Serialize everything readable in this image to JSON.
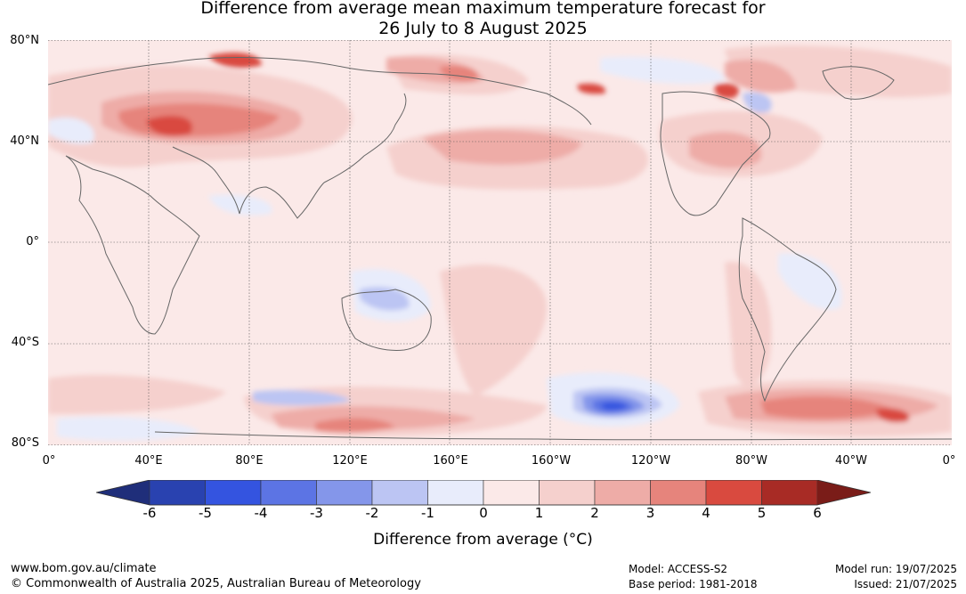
{
  "title_line1": "Difference from average mean maximum temperature forecast for",
  "title_line2": "26 July to 8 August 2025",
  "lat_labels": [
    "80°N",
    "40°N",
    "0°",
    "40°S",
    "80°S"
  ],
  "lon_labels": [
    "0°",
    "40°E",
    "80°E",
    "120°E",
    "160°E",
    "160°W",
    "120°W",
    "80°W",
    "40°W",
    "0°"
  ],
  "colorbar": {
    "ticks": [
      "-6",
      "-5",
      "-4",
      "-3",
      "-2",
      "-1",
      "0",
      "1",
      "2",
      "3",
      "4",
      "5",
      "6"
    ],
    "colors": [
      "#1f2e7a",
      "#2942b0",
      "#3454e0",
      "#5c74e4",
      "#8496ea",
      "#bcc5f3",
      "#e8ecfb",
      "#fbe9e8",
      "#f5d0cd",
      "#eeaca7",
      "#e6847c",
      "#d94a3f",
      "#a82b25",
      "#7a1c18"
    ],
    "label": "Difference from average (°C)"
  },
  "footer": {
    "url": "www.bom.gov.au/climate",
    "copyright": "© Commonwealth of Australia 2025, Australian Bureau of Meteorology",
    "model": "Model: ACCESS-S2",
    "base_period": "Base period: 1981-2018",
    "model_run": "Model run: 19/07/2025",
    "issued": "Issued: 21/07/2025"
  }
}
